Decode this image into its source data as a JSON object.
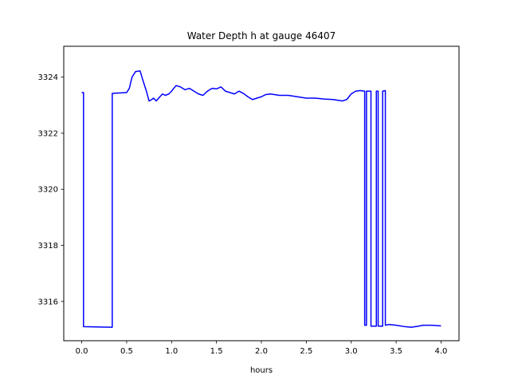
{
  "chart_data": {
    "type": "line",
    "title": "Water Depth h at gauge 46407",
    "xlabel": "hours",
    "ylabel": "",
    "xlim": [
      -0.2,
      4.2
    ],
    "ylim": [
      3314.6,
      3325.1
    ],
    "xticks": [
      0.0,
      0.5,
      1.0,
      1.5,
      2.0,
      2.5,
      3.0,
      3.5,
      4.0
    ],
    "xtick_labels": [
      "0.0",
      "0.5",
      "1.0",
      "1.5",
      "2.0",
      "2.5",
      "3.0",
      "3.5",
      "4.0"
    ],
    "yticks": [
      3316,
      3318,
      3320,
      3322,
      3324
    ],
    "ytick_labels": [
      "3316",
      "3318",
      "3320",
      "3322",
      "3324"
    ],
    "grid": false,
    "series": [
      {
        "color": "#0000ff",
        "x": [
          0.0,
          0.02,
          0.02,
          0.34,
          0.34,
          0.5,
          0.53,
          0.56,
          0.6,
          0.65,
          0.68,
          0.72,
          0.75,
          0.78,
          0.8,
          0.83,
          0.87,
          0.9,
          0.93,
          0.97,
          1.0,
          1.05,
          1.1,
          1.15,
          1.2,
          1.25,
          1.3,
          1.35,
          1.4,
          1.45,
          1.5,
          1.55,
          1.6,
          1.65,
          1.7,
          1.75,
          1.8,
          1.85,
          1.9,
          1.95,
          2.0,
          2.05,
          2.1,
          2.2,
          2.3,
          2.4,
          2.5,
          2.6,
          2.7,
          2.8,
          2.9,
          2.95,
          3.0,
          3.05,
          3.1,
          3.15,
          3.15,
          3.17,
          3.17,
          3.22,
          3.22,
          3.28,
          3.28,
          3.3,
          3.3,
          3.35,
          3.35,
          3.38,
          3.38,
          3.42,
          3.42,
          3.5,
          3.6,
          3.67,
          3.75,
          3.8,
          3.85,
          3.9,
          4.0
        ],
        "y": [
          3323.45,
          3323.45,
          3315.1,
          3315.08,
          3323.42,
          3323.45,
          3323.6,
          3324.0,
          3324.2,
          3324.22,
          3323.9,
          3323.5,
          3323.15,
          3323.2,
          3323.25,
          3323.15,
          3323.3,
          3323.4,
          3323.35,
          3323.4,
          3323.5,
          3323.7,
          3323.65,
          3323.55,
          3323.6,
          3323.5,
          3323.4,
          3323.35,
          3323.5,
          3323.6,
          3323.58,
          3323.65,
          3323.5,
          3323.45,
          3323.4,
          3323.5,
          3323.42,
          3323.3,
          3323.2,
          3323.25,
          3323.3,
          3323.38,
          3323.4,
          3323.35,
          3323.35,
          3323.3,
          3323.25,
          3323.25,
          3323.22,
          3323.2,
          3323.15,
          3323.2,
          3323.4,
          3323.5,
          3323.52,
          3323.5,
          3315.15,
          3315.15,
          3323.5,
          3323.5,
          3315.12,
          3315.12,
          3323.5,
          3323.5,
          3315.12,
          3315.12,
          3323.5,
          3323.52,
          3315.15,
          3315.18,
          3315.18,
          3315.15,
          3315.1,
          3315.08,
          3315.12,
          3315.15,
          3315.15,
          3315.15,
          3315.13
        ]
      }
    ]
  }
}
